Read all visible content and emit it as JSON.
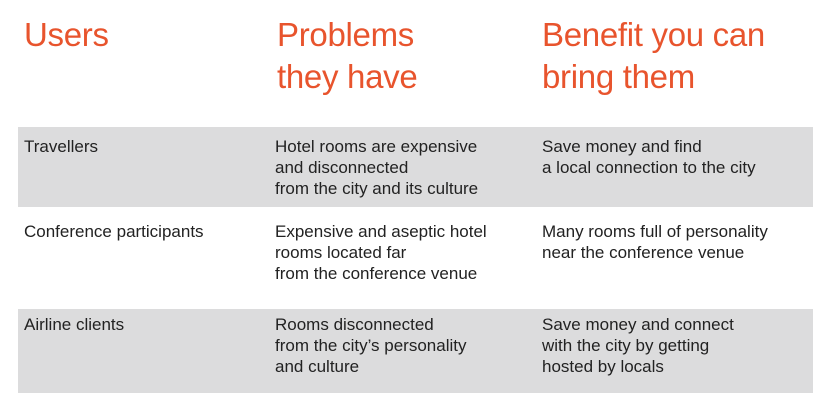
{
  "headers": {
    "users": [
      "Users"
    ],
    "problems": [
      "Problems",
      "they have"
    ],
    "benefit": [
      "Benefit you can",
      "bring them"
    ]
  },
  "rows": [
    {
      "user": [
        "Travellers"
      ],
      "problems": [
        "Hotel rooms are expensive",
        "and disconnected",
        "from the city and its culture"
      ],
      "benefit": [
        "Save money and find",
        "a local connection to the city"
      ]
    },
    {
      "user": [
        "Conference participants"
      ],
      "problems": [
        "Expensive and aseptic hotel",
        "rooms located far",
        "from the conference venue"
      ],
      "benefit": [
        "Many rooms full of personality",
        "near the conference venue"
      ]
    },
    {
      "user": [
        "Airline clients"
      ],
      "problems": [
        "Rooms disconnected",
        "from the city’s personality",
        "and culture"
      ],
      "benefit": [
        "Save money and connect",
        "with the city by getting",
        "hosted by locals"
      ]
    }
  ],
  "colors": {
    "accent": "#e8542d",
    "row_shade": "#dcdcdd",
    "text": "#222222"
  }
}
